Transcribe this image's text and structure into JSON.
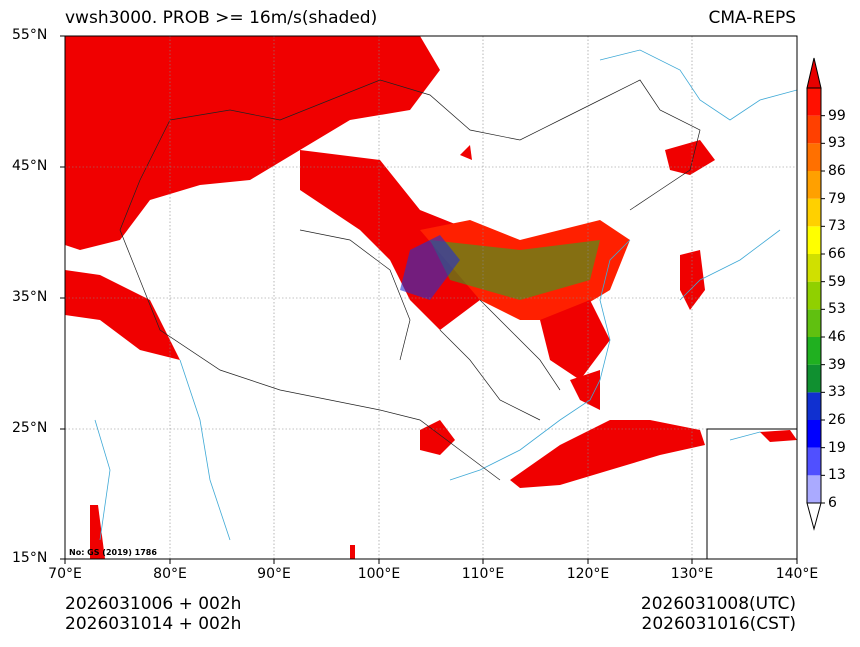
{
  "title": {
    "left": "vwsh3000. PROB >= 16m/s(shaded)",
    "right": "CMA-REPS"
  },
  "lat_labels": [
    "55°N",
    "45°N",
    "35°N",
    "25°N",
    "15°N"
  ],
  "lon_labels": [
    "70°E",
    "80°E",
    "90°E",
    "100°E",
    "110°E",
    "120°E",
    "130°E",
    "140°E"
  ],
  "colorbar": {
    "levels": [
      "6",
      "13",
      "19",
      "26",
      "33",
      "39",
      "46",
      "53",
      "59",
      "66",
      "73",
      "79",
      "86",
      "93",
      "99"
    ],
    "colors": [
      "#aaaaff",
      "#5050ff",
      "#0000ff",
      "#1030d0",
      "#109030",
      "#20b020",
      "#60c010",
      "#90d000",
      "#d0e000",
      "#ffff00",
      "#ffd000",
      "#ffa000",
      "#ff7000",
      "#ff4000",
      "#ff1000",
      "#e80000"
    ],
    "under_color": "#ffffff",
    "over_color": "#e80000"
  },
  "credit": "No: GS (2019) 1786",
  "time": {
    "init_utc": "2026031006  +  002h",
    "init_cst": "2026031014  +  002h",
    "valid_utc": "2026031008(UTC)",
    "valid_cst": "2026031016(CST)"
  },
  "colors": {
    "shade_red": "#f00000",
    "coast": "#3fa9d6",
    "border": "#222222"
  }
}
